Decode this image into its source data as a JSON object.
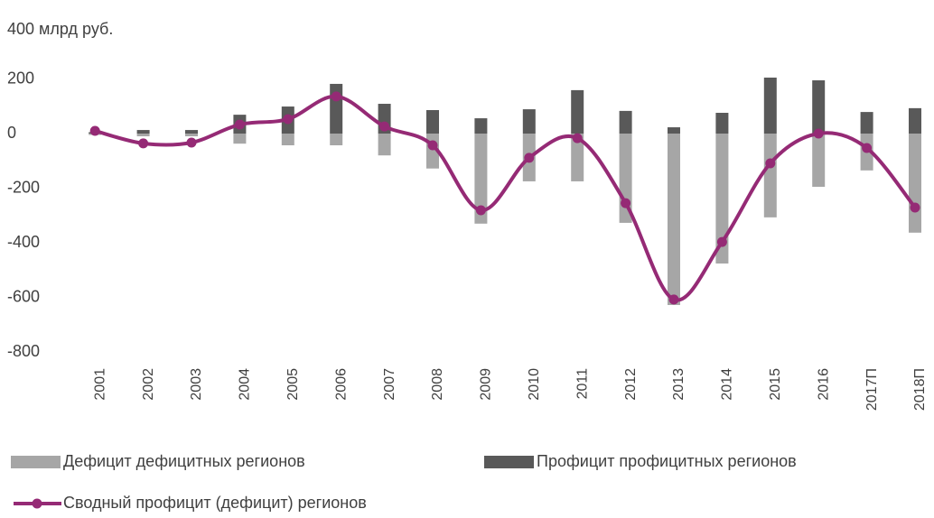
{
  "chart_data": {
    "type": "bar-line",
    "categories": [
      "2001",
      "2002",
      "2003",
      "2004",
      "2005",
      "2006",
      "2007",
      "2008",
      "2009",
      "2010",
      "2011",
      "2012",
      "2013",
      "2014",
      "2015",
      "2016",
      "2017П",
      "2018П"
    ],
    "series": [
      {
        "name": "Дефицит дефицитных регионов",
        "type": "bar",
        "color": "#a6a6a6",
        "values": [
          -5,
          -10,
          -10,
          -37,
          -43,
          -43,
          -80,
          -128,
          -330,
          -175,
          -175,
          -327,
          -628,
          -476,
          -307,
          -195,
          -135,
          -363
        ]
      },
      {
        "name": "Профицит профицитных регионов",
        "type": "bar",
        "color": "#595959",
        "values": [
          5,
          13,
          13,
          69,
          99,
          182,
          109,
          86,
          56,
          89,
          159,
          83,
          23,
          76,
          205,
          195,
          79,
          93
        ]
      },
      {
        "name": "Сводный профицит (дефицит) регионов",
        "type": "line",
        "color": "#952a75",
        "values": [
          10,
          -36,
          -33,
          33,
          53,
          136,
          26,
          -43,
          -281,
          -89,
          -17,
          -255,
          -608,
          -397,
          -109,
          0,
          -53,
          -271
        ]
      }
    ],
    "ylim": [
      -800,
      400
    ],
    "yticks": [
      -800,
      -600,
      -400,
      -200,
      0,
      200,
      {
        "value": 400,
        "label": "400 млрд руб."
      }
    ]
  }
}
